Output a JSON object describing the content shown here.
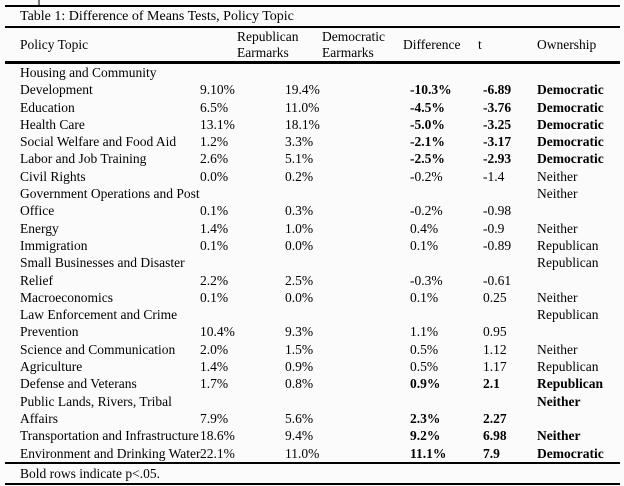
{
  "table": {
    "title": "Table 1: Difference of Means Tests, Policy Topic",
    "header": {
      "policy_topic": "Policy Topic",
      "republican": "Republican\nEarmarks",
      "democratic": "Democratic\nEarmarks",
      "difference": "Difference",
      "t": "t",
      "ownership": "Ownership"
    },
    "footnote": "Bold rows indicate p<.05.",
    "rows": [
      {
        "topic": "Housing and Community\nDevelopment",
        "rep": "9.10%",
        "dem": "19.4%",
        "diff": "-10.3%",
        "t": "-6.89",
        "own": "Democratic",
        "sig": true,
        "own_top": false
      },
      {
        "topic": "Education",
        "rep": "6.5%",
        "dem": "11.0%",
        "diff": "-4.5%",
        "t": "-3.76",
        "own": "Democratic",
        "sig": true,
        "own_top": false
      },
      {
        "topic": "Health Care",
        "rep": "13.1%",
        "dem": "18.1%",
        "diff": "-5.0%",
        "t": "-3.25",
        "own": "Democratic",
        "sig": true,
        "own_top": false
      },
      {
        "topic": "Social Welfare and Food Aid",
        "rep": "1.2%",
        "dem": "3.3%",
        "diff": "-2.1%",
        "t": "-3.17",
        "own": "Democratic",
        "sig": true,
        "own_top": false
      },
      {
        "topic": "Labor and Job Training",
        "rep": "2.6%",
        "dem": "5.1%",
        "diff": "-2.5%",
        "t": "-2.93",
        "own": "Democratic",
        "sig": true,
        "own_top": false
      },
      {
        "topic": "Civil Rights",
        "rep": "0.0%",
        "dem": "0.2%",
        "diff": "-0.2%",
        "t": "-1.4",
        "own": "Neither",
        "sig": false,
        "own_top": false
      },
      {
        "topic": "Government Operations and Post\nOffice",
        "rep": "0.1%",
        "dem": "0.3%",
        "diff": "-0.2%",
        "t": "-0.98",
        "own": "Neither",
        "sig": false,
        "own_top": true
      },
      {
        "topic": "Energy",
        "rep": "1.4%",
        "dem": "1.0%",
        "diff": "0.4%",
        "t": "-0.9",
        "own": "Neither",
        "sig": false,
        "own_top": false
      },
      {
        "topic": "Immigration",
        "rep": "0.1%",
        "dem": "0.0%",
        "diff": "0.1%",
        "t": "-0.89",
        "own": "Republican",
        "sig": false,
        "own_top": false
      },
      {
        "topic": "Small Businesses and Disaster\nRelief",
        "rep": "2.2%",
        "dem": "2.5%",
        "diff": "-0.3%",
        "t": "-0.61",
        "own": "Republican",
        "sig": false,
        "own_top": true
      },
      {
        "topic": "Macroeconomics",
        "rep": "0.1%",
        "dem": "0.0%",
        "diff": "0.1%",
        "t": "0.25",
        "own": "Neither",
        "sig": false,
        "own_top": false
      },
      {
        "topic": "Law Enforcement and Crime\nPrevention",
        "rep": "10.4%",
        "dem": "9.3%",
        "diff": "1.1%",
        "t": "0.95",
        "own": "Republican",
        "sig": false,
        "own_top": true
      },
      {
        "topic": "Science and Communication",
        "rep": "2.0%",
        "dem": "1.5%",
        "diff": "0.5%",
        "t": "1.12",
        "own": "Neither",
        "sig": false,
        "own_top": false
      },
      {
        "topic": "Agriculture",
        "rep": "1.4%",
        "dem": "0.9%",
        "diff": "0.5%",
        "t": "1.17",
        "own": "Republican",
        "sig": false,
        "own_top": false
      },
      {
        "topic": "Defense and Veterans",
        "rep": "1.7%",
        "dem": "0.8%",
        "diff": "0.9%",
        "t": "2.1",
        "own": "Republican",
        "sig": true,
        "own_top": false
      },
      {
        "topic": "Public Lands, Rivers, Tribal\nAffairs",
        "rep": "7.9%",
        "dem": "5.6%",
        "diff": "2.3%",
        "t": "2.27",
        "own": "Neither",
        "sig": true,
        "own_top": true
      },
      {
        "topic": "Transportation and Infrastructure",
        "rep": "18.6%",
        "dem": "9.4%",
        "diff": "9.2%",
        "t": "6.98",
        "own": "Neither",
        "sig": true,
        "own_top": false
      },
      {
        "topic": "Environment and Drinking Water",
        "rep": "22.1%",
        "dem": "11.0%",
        "diff": "11.1%",
        "t": "7.9",
        "own": "Democratic",
        "sig": true,
        "own_top": false
      }
    ]
  }
}
